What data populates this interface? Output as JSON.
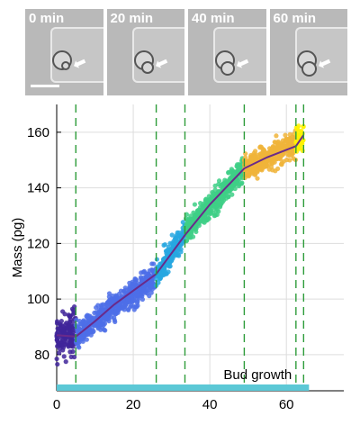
{
  "panels": [
    {
      "label": "0 min"
    },
    {
      "label": "20 min"
    },
    {
      "label": "40 min"
    },
    {
      "label": "60 min"
    }
  ],
  "chart_data": {
    "type": "scatter",
    "title": "",
    "xlabel": "",
    "ylabel": "Mass (pg)",
    "xlim": [
      0,
      75
    ],
    "ylim": [
      67,
      170
    ],
    "xticks": [
      0,
      20,
      40,
      60
    ],
    "yticks": [
      80,
      100,
      120,
      140,
      160
    ],
    "grid": true,
    "annotation": "Bud growth",
    "bud_growth_bar": [
      0,
      64.5
    ],
    "phase_boundaries": [
      5,
      26,
      33.5,
      49,
      62.5,
      64.5
    ],
    "phases": [
      {
        "x_range": [
          0,
          5
        ],
        "mass_range": [
          86,
          88
        ],
        "color": "#40249a"
      },
      {
        "x_range": [
          5,
          26
        ],
        "mass_range": [
          87,
          108
        ],
        "color": "#4e6fe8"
      },
      {
        "x_range": [
          26,
          33.5
        ],
        "mass_range": [
          108,
          124
        ],
        "color": "#27a7e0"
      },
      {
        "x_range": [
          33.5,
          49
        ],
        "mass_range": [
          124,
          147
        ],
        "color": "#3ecf86"
      },
      {
        "x_range": [
          49,
          62.5
        ],
        "mass_range": [
          147,
          156
        ],
        "color": "#f0b43a"
      },
      {
        "x_range": [
          62.5,
          64.5
        ],
        "mass_range": [
          156,
          159
        ],
        "color": "#fff200"
      }
    ],
    "trend_line": {
      "color": "#6a2a8a",
      "x": [
        0,
        5,
        10,
        15,
        20,
        26,
        33.5,
        40,
        49,
        55,
        62.5,
        64.5
      ],
      "y": [
        87,
        86.5,
        92,
        98,
        103,
        109,
        123,
        134,
        147,
        151,
        155,
        159
      ]
    }
  }
}
